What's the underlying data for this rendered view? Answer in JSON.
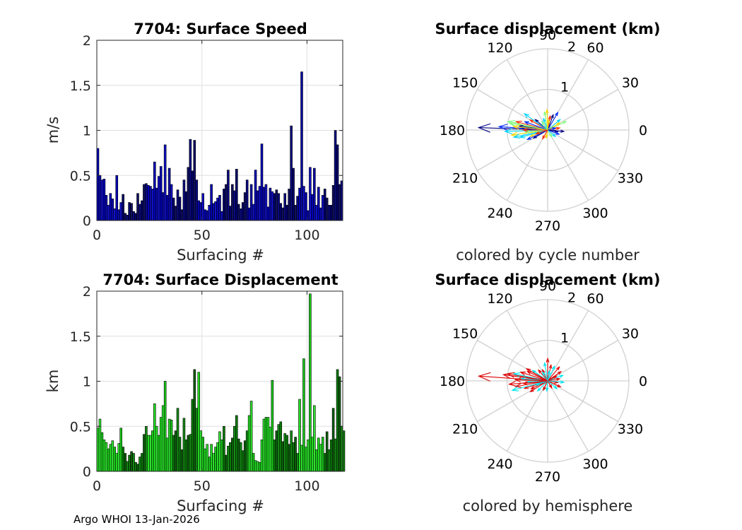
{
  "footer": "Argo WHOI 13-Jan-2026",
  "chart_data": [
    {
      "type": "bar",
      "title": "7704: Surface Speed",
      "xlabel": "Surfacing #",
      "ylabel": "m/s",
      "xlim": [
        0,
        117
      ],
      "ylim": [
        0,
        2
      ],
      "xticks": [
        "0",
        "50",
        "100"
      ],
      "yticks": [
        "0",
        "0.5",
        "1",
        "1.5",
        "2"
      ],
      "grid": true,
      "colormap": "dark-blue to blue by surfacing",
      "values": [
        0.8,
        0.5,
        0.45,
        0.46,
        0.28,
        0.17,
        0.3,
        0.24,
        0.13,
        0.5,
        0.12,
        0.2,
        0.29,
        0.08,
        0.06,
        0.2,
        0.19,
        0.1,
        0.08,
        0.3,
        0.18,
        0.22,
        0.4,
        0.41,
        0.39,
        0.38,
        0.35,
        0.65,
        0.36,
        0.49,
        0.6,
        0.31,
        0.84,
        0.28,
        0.58,
        0.4,
        0.25,
        0.16,
        0.34,
        0.26,
        0.12,
        0.45,
        0.32,
        0.59,
        0.9,
        0.55,
        0.89,
        0.45,
        0.22,
        0.2,
        0.3,
        0.12,
        0.11,
        0.17,
        0.4,
        0.19,
        0.21,
        0.25,
        0.28,
        0.1,
        0.35,
        0.4,
        0.56,
        0.16,
        0.4,
        0.33,
        0.57,
        0.18,
        0.13,
        0.2,
        0.31,
        0.45,
        0.14,
        0.4,
        0.18,
        0.56,
        0.33,
        0.38,
        0.85,
        0.37,
        0.4,
        0.15,
        0.36,
        0.32,
        0.3,
        0.34,
        0.3,
        0.19,
        0.14,
        0.3,
        0.17,
        0.35,
        1.05,
        0.58,
        0.17,
        0.27,
        0.36,
        1.65,
        0.38,
        0.31,
        0.11,
        0.59,
        0.29,
        0.58,
        0.17,
        0.37,
        0.14,
        0.28,
        0.35,
        0.25,
        0.17,
        0.17,
        0.39,
        1.0,
        0.84,
        0.4,
        0.44
      ]
    },
    {
      "type": "polar-compass",
      "title": "Surface displacement (km)",
      "xlabel": "colored by cycle number",
      "rmax": 2,
      "rticks": [
        "1",
        "2"
      ],
      "angle_ticks": [
        "0",
        "30",
        "60",
        "90",
        "120",
        "150",
        "180",
        "210",
        "240",
        "270",
        "300",
        "330"
      ],
      "colormap": "jet by cycle number",
      "arrows": [
        {
          "angle": 178,
          "r": 1.7
        },
        {
          "angle": 176,
          "r": 1.2
        },
        {
          "angle": 182,
          "r": 1.05
        },
        {
          "angle": 170,
          "r": 0.95
        },
        {
          "angle": 188,
          "r": 0.9
        },
        {
          "angle": 165,
          "r": 0.8
        },
        {
          "angle": 172,
          "r": 0.7
        },
        {
          "angle": 160,
          "r": 0.6
        },
        {
          "angle": 195,
          "r": 0.7
        },
        {
          "angle": 185,
          "r": 0.55
        },
        {
          "angle": 200,
          "r": 0.45
        },
        {
          "angle": 150,
          "r": 0.5
        },
        {
          "angle": 140,
          "r": 0.4
        },
        {
          "angle": 175,
          "r": 0.4
        },
        {
          "angle": 110,
          "r": 0.3
        },
        {
          "angle": 100,
          "r": 0.45
        },
        {
          "angle": 92,
          "r": 0.5
        },
        {
          "angle": 80,
          "r": 0.35
        },
        {
          "angle": 70,
          "r": 0.4
        },
        {
          "angle": 60,
          "r": 0.5
        },
        {
          "angle": 40,
          "r": 0.4
        },
        {
          "angle": 25,
          "r": 0.5
        },
        {
          "angle": 30,
          "r": 0.35
        },
        {
          "angle": 10,
          "r": 0.3
        },
        {
          "angle": 350,
          "r": 0.25
        },
        {
          "angle": 340,
          "r": 0.3
        },
        {
          "angle": 320,
          "r": 0.25
        },
        {
          "angle": 300,
          "r": 0.2
        },
        {
          "angle": 260,
          "r": 0.2
        },
        {
          "angle": 240,
          "r": 0.25
        },
        {
          "angle": 210,
          "r": 0.4
        },
        {
          "angle": 205,
          "r": 0.55
        },
        {
          "angle": 192,
          "r": 0.85
        },
        {
          "angle": 168,
          "r": 1.0
        },
        {
          "angle": 174,
          "r": 0.85
        },
        {
          "angle": 198,
          "r": 0.3
        },
        {
          "angle": 355,
          "r": 0.4
        },
        {
          "angle": 15,
          "r": 0.2
        },
        {
          "angle": 145,
          "r": 0.7
        },
        {
          "angle": 125,
          "r": 0.25
        },
        {
          "angle": 85,
          "r": 0.25
        },
        {
          "angle": 180,
          "r": 0.6
        }
      ]
    },
    {
      "type": "bar",
      "title": "7704: Surface Displacement",
      "xlabel": "Surfacing #",
      "ylabel": "km",
      "xlim": [
        0,
        117
      ],
      "ylim": [
        0,
        2
      ],
      "xticks": [
        "0",
        "50",
        "100"
      ],
      "yticks": [
        "0",
        "0.5",
        "1",
        "1.5",
        "2"
      ],
      "grid": true,
      "colormap": "dark-green to bright-green by surfacing",
      "values": [
        0.48,
        0.58,
        0.43,
        0.35,
        0.32,
        0.25,
        0.3,
        0.34,
        0.27,
        0.2,
        0.31,
        0.48,
        0.27,
        0.2,
        0.11,
        0.18,
        0.22,
        0.2,
        0.1,
        0.08,
        0.16,
        0.2,
        0.41,
        0.5,
        0.4,
        0.4,
        0.45,
        0.75,
        0.5,
        0.4,
        0.6,
        0.73,
        1.0,
        0.37,
        0.58,
        0.57,
        0.4,
        0.45,
        0.7,
        0.38,
        0.24,
        0.59,
        0.35,
        0.4,
        0.41,
        0.8,
        1.13,
        0.7,
        1.1,
        0.45,
        0.38,
        0.25,
        0.3,
        0.16,
        0.3,
        0.2,
        0.27,
        0.32,
        0.44,
        0.35,
        0.5,
        0.18,
        0.28,
        0.32,
        0.37,
        0.5,
        0.62,
        0.36,
        0.32,
        0.23,
        0.34,
        0.45,
        0.62,
        0.78,
        0.2,
        0.12,
        0.11,
        0.1,
        0.35,
        0.58,
        0.6,
        0.6,
        0.49,
        1.01,
        0.35,
        0.45,
        0.52,
        0.55,
        0.33,
        0.42,
        0.4,
        0.3,
        0.45,
        0.32,
        0.38,
        0.2,
        0.8,
        0.29,
        1.25,
        0.27,
        0.35,
        1.97,
        0.38,
        0.73,
        0.24,
        0.37,
        0.3,
        0.38,
        0.2,
        0.44,
        0.24,
        0.35,
        0.7,
        0.36,
        1.13,
        1.05,
        0.5,
        0.45
      ]
    },
    {
      "type": "polar-compass",
      "title": "Surface displacement (km)",
      "xlabel": "colored by hemisphere",
      "rmax": 2,
      "rticks": [
        "1",
        "2"
      ],
      "angle_ticks": [
        "0",
        "30",
        "60",
        "90",
        "120",
        "150",
        "180",
        "210",
        "240",
        "270",
        "300",
        "330"
      ],
      "colormap": "red = one hemisphere, cyan = other",
      "arrows": [
        {
          "angle": 176,
          "r": 1.7,
          "c": "red"
        },
        {
          "angle": 172,
          "r": 1.1,
          "c": "red"
        },
        {
          "angle": 185,
          "r": 0.95,
          "c": "red"
        },
        {
          "angle": 168,
          "r": 0.85,
          "c": "cyan"
        },
        {
          "angle": 190,
          "r": 0.8,
          "c": "red"
        },
        {
          "angle": 162,
          "r": 0.7,
          "c": "red"
        },
        {
          "angle": 175,
          "r": 0.65,
          "c": "cyan"
        },
        {
          "angle": 155,
          "r": 0.55,
          "c": "red"
        },
        {
          "angle": 198,
          "r": 0.6,
          "c": "red"
        },
        {
          "angle": 183,
          "r": 0.5,
          "c": "cyan"
        },
        {
          "angle": 205,
          "r": 0.45,
          "c": "red"
        },
        {
          "angle": 145,
          "r": 0.45,
          "c": "cyan"
        },
        {
          "angle": 130,
          "r": 0.35,
          "c": "red"
        },
        {
          "angle": 115,
          "r": 0.3,
          "c": "red"
        },
        {
          "angle": 100,
          "r": 0.45,
          "c": "cyan"
        },
        {
          "angle": 90,
          "r": 0.55,
          "c": "red"
        },
        {
          "angle": 78,
          "r": 0.4,
          "c": "red"
        },
        {
          "angle": 65,
          "r": 0.4,
          "c": "cyan"
        },
        {
          "angle": 50,
          "r": 0.45,
          "c": "red"
        },
        {
          "angle": 35,
          "r": 0.4,
          "c": "red"
        },
        {
          "angle": 20,
          "r": 0.4,
          "c": "cyan"
        },
        {
          "angle": 10,
          "r": 0.3,
          "c": "red"
        },
        {
          "angle": 350,
          "r": 0.25,
          "c": "red"
        },
        {
          "angle": 335,
          "r": 0.35,
          "c": "red"
        },
        {
          "angle": 320,
          "r": 0.3,
          "c": "cyan"
        },
        {
          "angle": 300,
          "r": 0.2,
          "c": "red"
        },
        {
          "angle": 265,
          "r": 0.25,
          "c": "cyan"
        },
        {
          "angle": 245,
          "r": 0.25,
          "c": "red"
        },
        {
          "angle": 225,
          "r": 0.35,
          "c": "cyan"
        },
        {
          "angle": 212,
          "r": 0.5,
          "c": "red"
        },
        {
          "angle": 195,
          "r": 0.9,
          "c": "cyan"
        },
        {
          "angle": 170,
          "r": 1.0,
          "c": "red"
        },
        {
          "angle": 178,
          "r": 0.8,
          "c": "red"
        },
        {
          "angle": 150,
          "r": 0.6,
          "c": "red"
        },
        {
          "angle": 355,
          "r": 0.4,
          "c": "cyan"
        },
        {
          "angle": 28,
          "r": 0.25,
          "c": "red"
        },
        {
          "angle": 120,
          "r": 0.25,
          "c": "cyan"
        },
        {
          "angle": 80,
          "r": 0.25,
          "c": "cyan"
        },
        {
          "angle": 200,
          "r": 0.3,
          "c": "cyan"
        },
        {
          "angle": 186,
          "r": 0.6,
          "c": "red"
        }
      ]
    }
  ]
}
